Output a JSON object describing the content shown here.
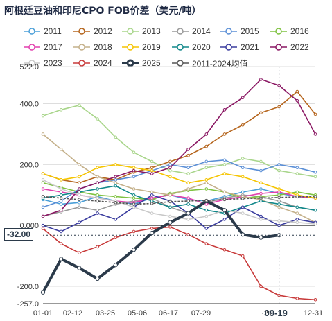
{
  "title": "阿根廷豆油和印尼CPO FOB价差（美元/吨）",
  "chart_data": {
    "type": "line",
    "title": "阿根廷豆油和印尼CPO FOB价差（美元/吨）",
    "xlabel": "",
    "ylabel": "",
    "y_ticks": [
      "522.0",
      "400.0",
      "200.0",
      "0.000",
      "-200.0",
      "-257.0"
    ],
    "ylim": [
      -257,
      522
    ],
    "x_ticks": [
      "01-01",
      "02-12",
      "03-25",
      "05-06",
      "06-17",
      "07-29",
      "09-19",
      "·21",
      "12-31"
    ],
    "current_value_label": "-32.00",
    "current_date_label": "09-19",
    "grid": "horizontal",
    "legend_position": "top",
    "series": [
      {
        "name": "2011",
        "color": "#4a9fd8",
        "values": [
          85,
          70,
          75,
          95,
          80,
          70,
          90,
          100,
          85,
          80,
          95,
          110,
          120,
          105,
          95,
          90
        ]
      },
      {
        "name": "2012",
        "color": "#b5651d",
        "values": [
          170,
          150,
          140,
          160,
          150,
          175,
          190,
          210,
          230,
          260,
          300,
          330,
          370,
          390,
          440,
          365
        ]
      },
      {
        "name": "2013",
        "color": "#a8d58a",
        "values": [
          360,
          380,
          395,
          350,
          290,
          240,
          210,
          180,
          170,
          190,
          200,
          220,
          210,
          180,
          170,
          160
        ]
      },
      {
        "name": "2014",
        "color": "#999999",
        "values": [
          30,
          45,
          60,
          50,
          70,
          80,
          90,
          60,
          40,
          75,
          90,
          100,
          95,
          80,
          60,
          50
        ]
      },
      {
        "name": "2015",
        "color": "#5b8fd6",
        "values": [
          60,
          80,
          120,
          140,
          150,
          160,
          180,
          200,
          190,
          210,
          215,
          190,
          180,
          200,
          190,
          175
        ]
      },
      {
        "name": "2016",
        "color": "#7fc241",
        "values": [
          140,
          125,
          110,
          100,
          95,
          90,
          85,
          105,
          115,
          120,
          110,
          90,
          95,
          100,
          110,
          100
        ]
      },
      {
        "name": "2017",
        "color": "#e23fae",
        "values": [
          120,
          110,
          100,
          90,
          80,
          75,
          90,
          100,
          90,
          70,
          85,
          95,
          105,
          110,
          95,
          90
        ]
      },
      {
        "name": "2018",
        "color": "#c4b08a",
        "values": [
          300,
          250,
          200,
          160,
          140,
          120,
          110,
          100,
          120,
          140,
          110,
          95,
          85,
          60,
          40,
          10
        ]
      },
      {
        "name": "2019",
        "color": "#f5c400",
        "values": [
          170,
          150,
          160,
          190,
          200,
          190,
          180,
          160,
          140,
          150,
          170,
          160,
          140,
          120,
          100,
          90
        ]
      },
      {
        "name": "2020",
        "color": "#11888a",
        "values": [
          90,
          100,
          110,
          120,
          130,
          100,
          80,
          60,
          70,
          50,
          40,
          60,
          80,
          70,
          60,
          50
        ]
      },
      {
        "name": "2021",
        "color": "#3a3c9e",
        "values": [
          0,
          -20,
          10,
          40,
          20,
          60,
          100,
          80,
          40,
          -10,
          20,
          60,
          30,
          0,
          20,
          10
        ]
      },
      {
        "name": "2022",
        "color": "#8a1763",
        "values": [
          30,
          50,
          120,
          140,
          160,
          180,
          170,
          190,
          250,
          300,
          380,
          420,
          480,
          460,
          410,
          300
        ]
      },
      {
        "name": "2023",
        "color": "#c8c8c8",
        "values": [
          150,
          120,
          100,
          90,
          80,
          60,
          40,
          30,
          20,
          30,
          50,
          40,
          20,
          15,
          10,
          5
        ]
      },
      {
        "name": "2024",
        "color": "#c83a3a",
        "values": [
          -10,
          -60,
          -90,
          -70,
          -40,
          -20,
          -10,
          -5,
          -30,
          -60,
          -80,
          -100,
          -200,
          -230,
          -240,
          -244
        ]
      },
      {
        "name": "2025",
        "color": "#2b3a4a",
        "values": [
          -220,
          -110,
          -140,
          -175,
          -130,
          -80,
          -25,
          10,
          40,
          80,
          50,
          -30,
          -40,
          -32
        ]
      },
      {
        "name": "2011-2024均值",
        "color": "#555555",
        "values": [
          95,
          90,
          85,
          80,
          75,
          70,
          72,
          78,
          80,
          82,
          85,
          88,
          90,
          92,
          94,
          95
        ]
      }
    ]
  }
}
